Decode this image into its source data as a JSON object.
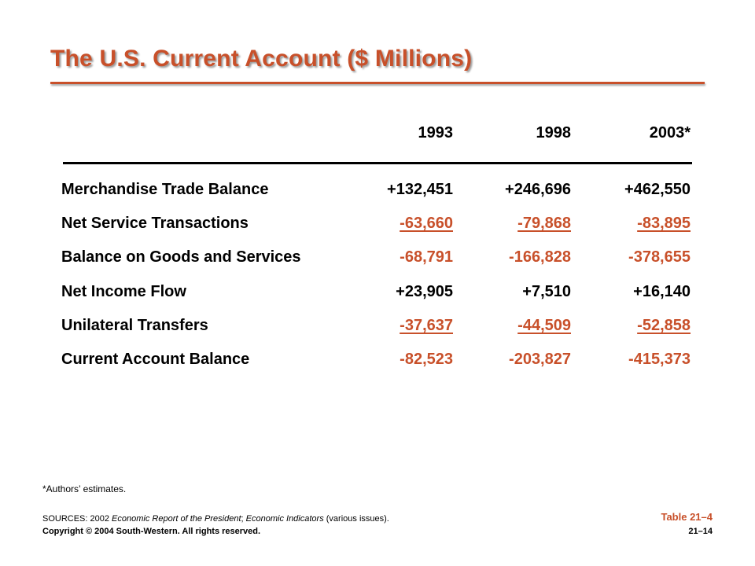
{
  "title": "The U.S. Current Account ($ Millions)",
  "columns": [
    "1993",
    "1998",
    "2003*"
  ],
  "rows": [
    {
      "label": "Merchandise Trade Balance",
      "values": [
        "+132,451",
        "+246,696",
        "+462,550"
      ]
    },
    {
      "label": "Net Service Transactions",
      "values": [
        "-63,660",
        "-79,868",
        "-83,895"
      ]
    },
    {
      "label": "Balance on Goods and Services",
      "values": [
        "-68,791",
        "-166,828",
        "-378,655"
      ]
    },
    {
      "label": "Net Income Flow",
      "values": [
        "+23,905",
        "+7,510",
        "+16,140"
      ]
    },
    {
      "label": "Unilateral Transfers",
      "values": [
        "-37,637",
        "-44,509",
        "-52,858"
      ]
    },
    {
      "label": "Current Account Balance",
      "values": [
        "-82,523",
        "-203,827",
        "-415,373"
      ]
    }
  ],
  "footnote": "*Authors’ estimates.",
  "sources": {
    "prefix": "SOURCES: 2002 ",
    "title1": "Economic Report of the President",
    "sep": "; ",
    "title2": "Economic Indicators",
    "suffix": " (various issues)."
  },
  "copyright": "Copyright © 2004 South-Western. All rights reserved.",
  "table_ref": "Table 21–4",
  "page_number": "21–14",
  "colors": {
    "accent": "#c8502a",
    "text": "#000000"
  }
}
